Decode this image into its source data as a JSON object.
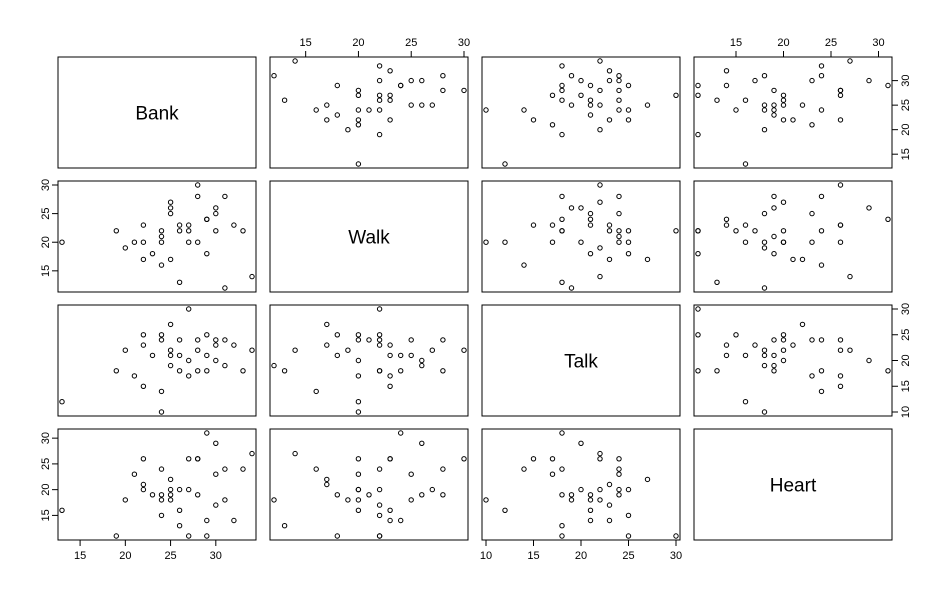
{
  "chart_data": {
    "type": "scatter",
    "layout": "scatterplot-matrix",
    "variables": [
      "Bank",
      "Walk",
      "Talk",
      "Heart"
    ],
    "ranges": {
      "Bank": [
        13,
        34
      ],
      "Walk": [
        12,
        30
      ],
      "Talk": [
        10,
        30
      ],
      "Heart": [
        11,
        31
      ]
    },
    "ticks": {
      "Bank": [
        15,
        20,
        25,
        30
      ],
      "Walk": [
        15,
        20,
        25,
        30
      ],
      "Talk": [
        10,
        15,
        20,
        25,
        30
      ],
      "Heart": [
        15,
        20,
        25,
        30
      ]
    },
    "observations": [
      {
        "Bank": 13,
        "Walk": 20,
        "Talk": 12,
        "Heart": 16
      },
      {
        "Bank": 19,
        "Walk": 22,
        "Talk": 18,
        "Heart": 11
      },
      {
        "Bank": 20,
        "Walk": 19,
        "Talk": 22,
        "Heart": 18
      },
      {
        "Bank": 21,
        "Walk": 20,
        "Talk": 17,
        "Heart": 23
      },
      {
        "Bank": 22,
        "Walk": 23,
        "Talk": 15,
        "Heart": 26
      },
      {
        "Bank": 22,
        "Walk": 17,
        "Talk": 23,
        "Heart": 21
      },
      {
        "Bank": 24,
        "Walk": 22,
        "Talk": 25,
        "Heart": 15
      },
      {
        "Bank": 24,
        "Walk": 16,
        "Talk": 14,
        "Heart": 24
      },
      {
        "Bank": 24,
        "Walk": 20,
        "Talk": 10,
        "Heart": 18
      },
      {
        "Bank": 25,
        "Walk": 27,
        "Talk": 22,
        "Heart": 20
      },
      {
        "Bank": 25,
        "Walk": 26,
        "Talk": 19,
        "Heart": 19
      },
      {
        "Bank": 25,
        "Walk": 17,
        "Talk": 27,
        "Heart": 22
      },
      {
        "Bank": 26,
        "Walk": 13,
        "Talk": 18,
        "Heart": 13
      },
      {
        "Bank": 26,
        "Walk": 22,
        "Talk": 24,
        "Heart": 20
      },
      {
        "Bank": 27,
        "Walk": 23,
        "Talk": 17,
        "Heart": 26
      },
      {
        "Bank": 27,
        "Walk": 22,
        "Talk": 30,
        "Heart": 11
      },
      {
        "Bank": 28,
        "Walk": 30,
        "Talk": 22,
        "Heart": 26
      },
      {
        "Bank": 28,
        "Walk": 28,
        "Talk": 18,
        "Heart": 19
      },
      {
        "Bank": 29,
        "Walk": 24,
        "Talk": 21,
        "Heart": 14
      },
      {
        "Bank": 29,
        "Walk": 18,
        "Talk": 25,
        "Heart": 11
      },
      {
        "Bank": 30,
        "Walk": 26,
        "Talk": 20,
        "Heart": 29
      },
      {
        "Bank": 30,
        "Walk": 22,
        "Talk": 23,
        "Heart": 17
      },
      {
        "Bank": 31,
        "Walk": 28,
        "Talk": 24,
        "Heart": 24
      },
      {
        "Bank": 31,
        "Walk": 12,
        "Talk": 19,
        "Heart": 18
      },
      {
        "Bank": 32,
        "Walk": 23,
        "Talk": 23,
        "Heart": 14
      },
      {
        "Bank": 33,
        "Walk": 22,
        "Talk": 18,
        "Heart": 24
      },
      {
        "Bank": 34,
        "Walk": 14,
        "Talk": 22,
        "Heart": 27
      },
      {
        "Bank": 22,
        "Walk": 20,
        "Talk": 25,
        "Heart": 20
      },
      {
        "Bank": 24,
        "Walk": 21,
        "Talk": 24,
        "Heart": 19
      },
      {
        "Bank": 26,
        "Walk": 23,
        "Talk": 21,
        "Heart": 16
      },
      {
        "Bank": 28,
        "Walk": 20,
        "Talk": 24,
        "Heart": 26
      },
      {
        "Bank": 29,
        "Walk": 24,
        "Talk": 18,
        "Heart": 31
      },
      {
        "Bank": 30,
        "Walk": 25,
        "Talk": 24,
        "Heart": 23
      },
      {
        "Bank": 27,
        "Walk": 20,
        "Talk": 20,
        "Heart": 20
      },
      {
        "Bank": 25,
        "Walk": 25,
        "Talk": 21,
        "Heart": 18
      },
      {
        "Bank": 23,
        "Walk": 18,
        "Talk": 21,
        "Heart": 19
      }
    ],
    "grid": false,
    "legend": "none",
    "title": "",
    "xlabel": "",
    "ylabel": ""
  }
}
